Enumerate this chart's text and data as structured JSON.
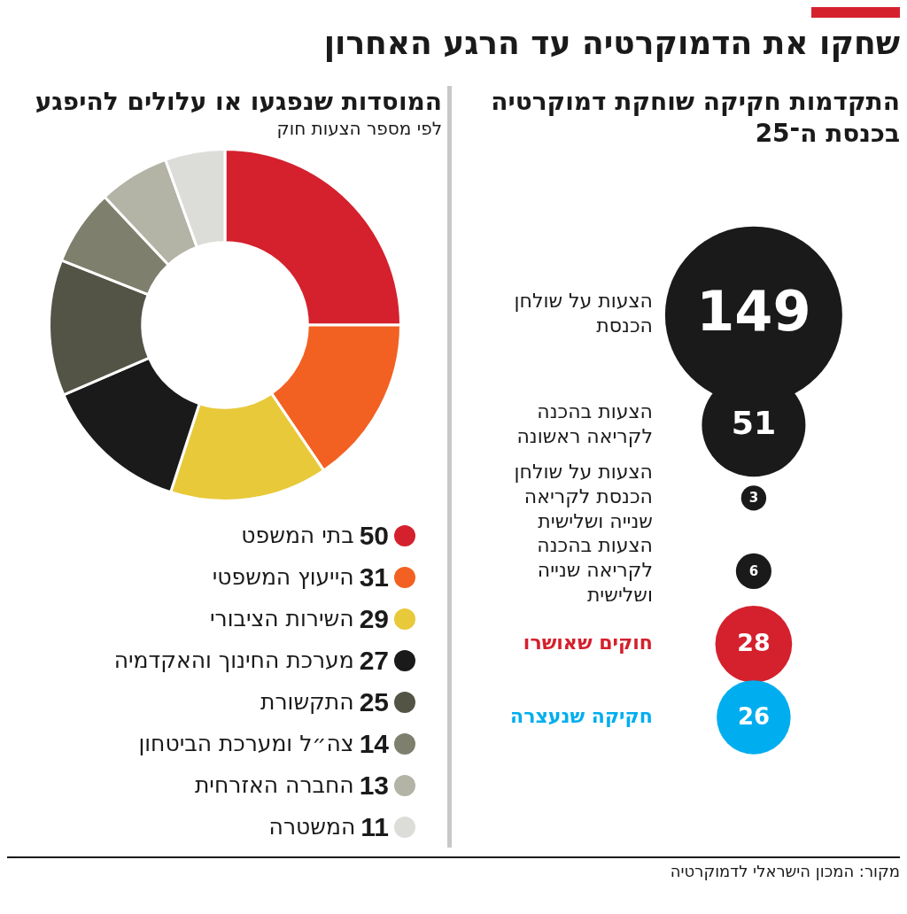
{
  "chart_data": [
    {
      "type": "other",
      "title": "שחקו את הדמוקרטיה עד הרגע האחרון",
      "subtitle": "התקדמות חקיקה שוחקת דמוקרטיה בכנסת ה־25",
      "categories": [
        "הצעות על שולחן הכנסת",
        "הצעות בהכנה לקריאה ראשונה",
        "הצעות על שולחן הכנסת לקריאה שנייה ושלישית",
        "הצעות בהכנה לקריאה שנייה ושלישית",
        "חוקים שאושרו",
        "חקיקה שנעצרה"
      ],
      "values": [
        149,
        51,
        3,
        6,
        28,
        26
      ],
      "colors": [
        "#1a1a1a",
        "#1a1a1a",
        "#1a1a1a",
        "#1a1a1a",
        "#d4212d",
        "#00aeef"
      ],
      "data_labels": true,
      "annotations": [
        "מקור: המכון הישראלי לדמוקרטיה"
      ]
    },
    {
      "type": "donut",
      "title": "המוסדות שנפגעו או עלולים להיפגע",
      "subtitle": "לפי מספר הצעות חוק",
      "categories": [
        "בתי המשפט",
        "הייעוץ המשפטי",
        "השירות הציבורי",
        "מערכת החינוך והאקדמיה",
        "התקשורת",
        "צה״ל ומערכת הביטחון",
        "החברה האזרחית",
        "המשטרה"
      ],
      "values": [
        50,
        31,
        29,
        27,
        25,
        14,
        13,
        11
      ],
      "colors": [
        "#d4212d",
        "#f26122",
        "#e8c93a",
        "#1a1a1a",
        "#545446",
        "#7f7f6d",
        "#b3b3a6",
        "#dcdcd8"
      ],
      "legend": "bottom",
      "data_labels": true
    }
  ]
}
